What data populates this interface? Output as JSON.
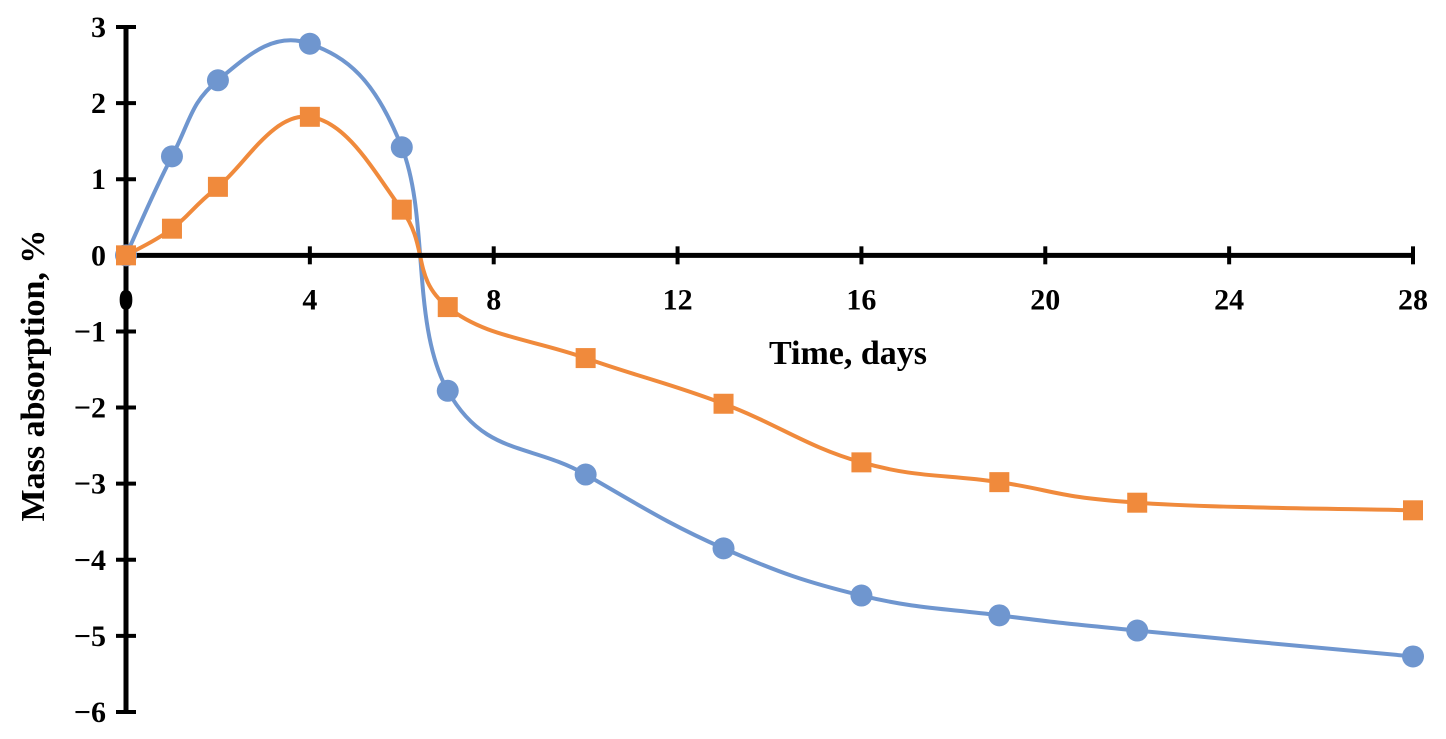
{
  "chart_data": {
    "type": "line",
    "title": "",
    "xlabel": "Time, days",
    "ylabel": "Mass absorption, %",
    "xlim": [
      0,
      28
    ],
    "ylim": [
      -6,
      3
    ],
    "xticks": [
      4,
      8,
      12,
      16,
      20,
      24,
      28
    ],
    "yticks": [
      3,
      2,
      1,
      0,
      -1,
      -2,
      -3,
      -4,
      -5,
      -6
    ],
    "xtick_labels": [
      "4",
      "8",
      "12",
      "16",
      "20",
      "24",
      "28"
    ],
    "ytick_labels": [
      "3",
      "2",
      "1",
      "0",
      "−1",
      "−2",
      "−3",
      "−4",
      "−5",
      "−6"
    ],
    "origin_label": "0",
    "grid": false,
    "legend": "none",
    "series": [
      {
        "marker": "circle",
        "color": "#6f96cf",
        "x": [
          0,
          1,
          2,
          4,
          6,
          7,
          10,
          13,
          16,
          19,
          22,
          28
        ],
        "y": [
          0,
          1.3,
          2.3,
          2.78,
          1.42,
          -1.78,
          -2.88,
          -3.85,
          -4.47,
          -4.73,
          -4.93,
          -5.27
        ]
      },
      {
        "marker": "square",
        "color": "#f08a3c",
        "x": [
          0,
          1,
          2,
          4,
          6,
          7,
          10,
          13,
          16,
          19,
          22,
          28
        ],
        "y": [
          0,
          0.35,
          0.9,
          1.82,
          0.6,
          -0.68,
          -1.35,
          -1.95,
          -2.72,
          -2.98,
          -3.25,
          -3.35
        ]
      }
    ]
  }
}
